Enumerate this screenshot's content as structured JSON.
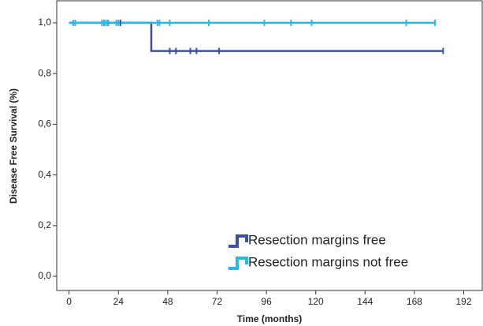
{
  "chart_data": {
    "type": "kaplan-meier",
    "x_label": "Time (months)",
    "y_label": "Disease Free Survival (%)",
    "xlim": [
      -6,
      201
    ],
    "ylim": [
      -0.056,
      1.087
    ],
    "xticks": [
      0,
      24,
      48,
      72,
      96,
      120,
      144,
      168,
      192
    ],
    "yticks": [
      {
        "value": 0,
        "label": "0,0"
      },
      {
        "value": 0.2,
        "label": "0,2"
      },
      {
        "value": 0.4,
        "label": "0,4"
      },
      {
        "value": 0.6,
        "label": "0,6"
      },
      {
        "value": 0.8,
        "label": "0,8"
      },
      {
        "value": 1,
        "label": "1,0"
      }
    ],
    "legend_position": "lower right",
    "series": [
      {
        "name": "Resection margins free",
        "color": "#3b4fa3",
        "x": [
          0,
          40,
          40,
          182
        ],
        "values": [
          1,
          1,
          0.889,
          0.889
        ],
        "censored_x": [
          17,
          19,
          25,
          49,
          52,
          59,
          62,
          73,
          182
        ],
        "censored_values": [
          1,
          1,
          1,
          0.889,
          0.889,
          0.889,
          0.889,
          0.889,
          0.889
        ]
      },
      {
        "name": "Resection margins not free",
        "color": "#2bb6ea",
        "x": [
          0,
          178
        ],
        "values": [
          1,
          1
        ],
        "censored_x": [
          2,
          3,
          16,
          17,
          18,
          19,
          23,
          24,
          43,
          44,
          49,
          68,
          95,
          108,
          118,
          164,
          178
        ],
        "censored_values": [
          1,
          1,
          1,
          1,
          1,
          1,
          1,
          1,
          1,
          1,
          1,
          1,
          1,
          1,
          1,
          1,
          1
        ]
      }
    ]
  }
}
